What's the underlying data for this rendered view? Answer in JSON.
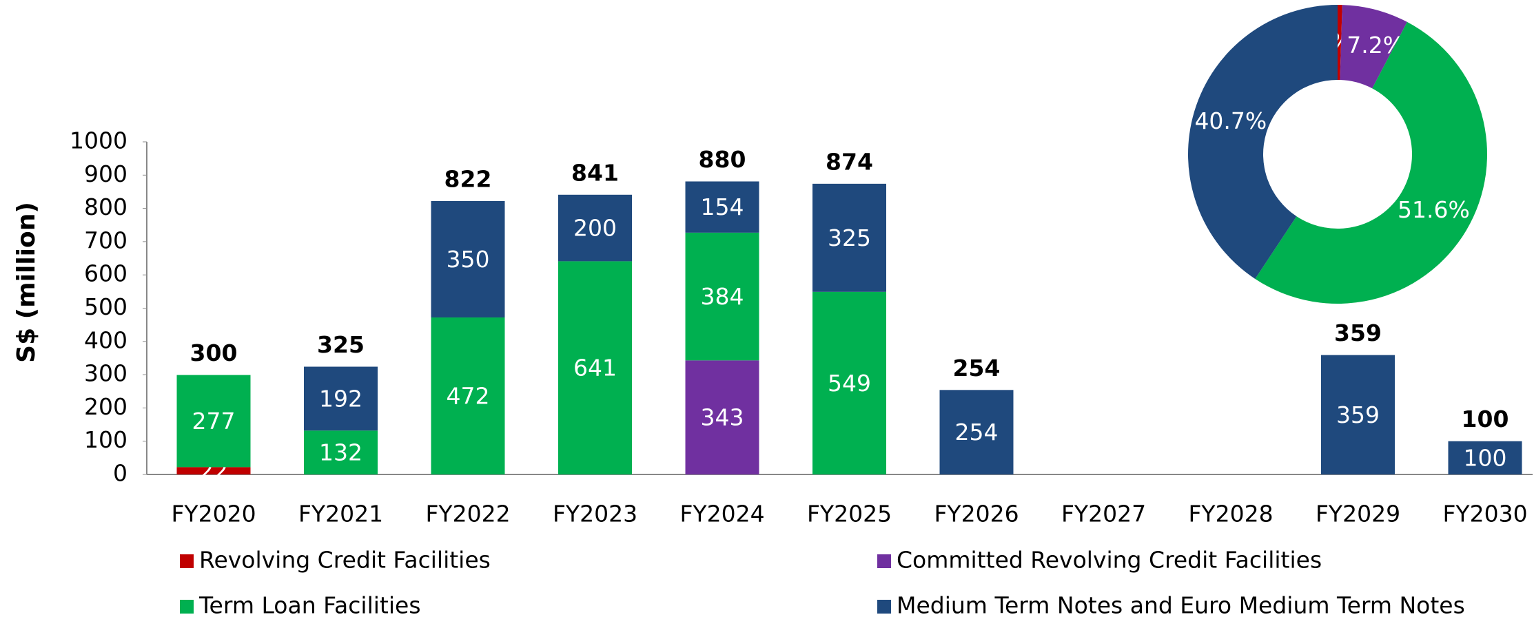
{
  "chart_data": [
    {
      "type": "stacked-bar",
      "y_label": "S$ (million)",
      "categories": [
        "FY2020",
        "FY2021",
        "FY2022",
        "FY2023",
        "FY2024",
        "FY2025",
        "FY2026",
        "FY2027",
        "FY2028",
        "FY2029",
        "FY2030"
      ],
      "series": [
        {
          "name": "Revolving Credit Facilities",
          "color": "#c00000",
          "values": [
            22,
            null,
            null,
            null,
            null,
            null,
            null,
            null,
            null,
            null,
            null
          ]
        },
        {
          "name": "Committed Revolving Credit Facilities",
          "color": "#7030a0",
          "values": [
            null,
            null,
            null,
            null,
            343,
            null,
            null,
            null,
            null,
            null,
            null
          ]
        },
        {
          "name": "Term Loan Facilities",
          "color": "#00b050",
          "values": [
            277,
            132,
            472,
            641,
            384,
            549,
            null,
            null,
            null,
            null,
            null
          ]
        },
        {
          "name": "Medium Term Notes and Euro Medium Term Notes",
          "color": "#1f497d",
          "values": [
            null,
            192,
            350,
            200,
            154,
            325,
            254,
            null,
            null,
            359,
            100
          ]
        }
      ],
      "totals": [
        300,
        325,
        822,
        841,
        880,
        874,
        254,
        null,
        null,
        359,
        100
      ],
      "ylim": [
        0,
        1000
      ],
      "yticks": [
        0,
        100,
        200,
        300,
        400,
        500,
        600,
        700,
        800,
        900,
        1000
      ]
    },
    {
      "type": "donut",
      "values": [
        0.5,
        7.2,
        51.6,
        40.7
      ],
      "value_labels": [
        "0.5%",
        "7.2%",
        "51.6%",
        "40.7%"
      ],
      "colors": [
        "#c00000",
        "#7030a0",
        "#00b050",
        "#1f497d"
      ]
    }
  ]
}
